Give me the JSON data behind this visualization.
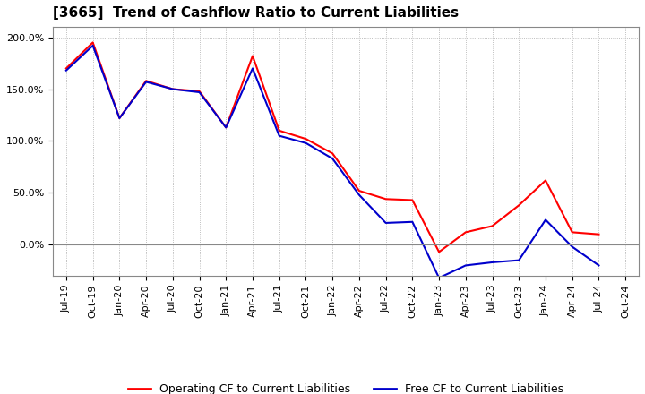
{
  "title": "[3665]  Trend of Cashflow Ratio to Current Liabilities",
  "x_labels": [
    "Jul-19",
    "Oct-19",
    "Jan-20",
    "Apr-20",
    "Jul-20",
    "Oct-20",
    "Jan-21",
    "Apr-21",
    "Jul-21",
    "Oct-21",
    "Jan-22",
    "Apr-22",
    "Jul-22",
    "Oct-22",
    "Jan-23",
    "Apr-23",
    "Jul-23",
    "Oct-23",
    "Jan-24",
    "Apr-24",
    "Jul-24",
    "Oct-24"
  ],
  "operating_cf": [
    1.7,
    1.95,
    1.22,
    1.58,
    1.5,
    1.48,
    1.13,
    1.82,
    1.1,
    1.02,
    0.88,
    0.52,
    0.44,
    0.43,
    -0.07,
    0.12,
    0.18,
    0.38,
    0.62,
    0.12,
    0.1,
    null
  ],
  "free_cf": [
    1.68,
    1.92,
    1.22,
    1.57,
    1.5,
    1.47,
    1.13,
    1.7,
    1.05,
    0.98,
    0.83,
    0.48,
    0.21,
    0.22,
    -0.32,
    -0.2,
    -0.17,
    -0.15,
    0.24,
    -0.02,
    -0.2,
    null
  ],
  "operating_color": "#FF0000",
  "free_color": "#0000CC",
  "background_color": "#FFFFFF",
  "grid_color": "#AAAAAA",
  "ylim_min": -0.3,
  "ylim_max": 2.1,
  "yticks": [
    0.0,
    0.5,
    1.0,
    1.5,
    2.0
  ],
  "legend_op": "Operating CF to Current Liabilities",
  "legend_free": "Free CF to Current Liabilities",
  "title_fontsize": 11,
  "tick_fontsize": 8,
  "legend_fontsize": 9
}
